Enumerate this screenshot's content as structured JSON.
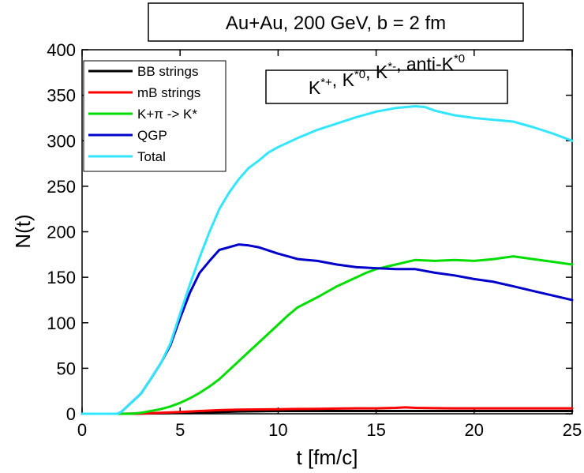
{
  "chart_data": {
    "type": "line",
    "title": "Au+Au, 200 GeV, b = 2 fm",
    "xlabel": "t [fm/c]",
    "ylabel": "N(t)",
    "xlim": [
      0,
      25
    ],
    "ylim": [
      0,
      400
    ],
    "xticks": [
      0,
      5,
      10,
      15,
      20,
      25
    ],
    "yticks": [
      0,
      50,
      100,
      150,
      200,
      250,
      300,
      350,
      400
    ],
    "legend_position": "top-left",
    "species_label": {
      "parts": [
        {
          "text": "K",
          "sup": "*+"
        },
        {
          "text": ", K",
          "sup": "*0"
        },
        {
          "text": ", K",
          "sup": "*-"
        },
        {
          "text": ", anti-K",
          "sup": "*0"
        }
      ]
    },
    "series": [
      {
        "name": "BB strings",
        "color": "#000000",
        "x": [
          0,
          2,
          3,
          4,
          5,
          6,
          7,
          8,
          10,
          12,
          15,
          17,
          20,
          25
        ],
        "y": [
          0,
          0,
          0.2,
          0.5,
          1,
          1.5,
          2,
          2.5,
          3,
          3,
          3,
          3,
          3,
          3
        ]
      },
      {
        "name": "mB strings",
        "color": "#ff0000",
        "x": [
          0,
          2,
          3,
          4,
          5,
          6,
          7,
          8,
          9,
          10,
          11,
          12,
          13,
          14,
          15,
          16,
          16.5,
          17,
          18,
          19,
          20,
          21,
          22,
          23,
          24,
          25
        ],
        "y": [
          0,
          0,
          0.3,
          1,
          2,
          3,
          4,
          4.5,
          4.8,
          5,
          5.3,
          5.5,
          5.7,
          6,
          6,
          6.5,
          7,
          6.5,
          6.2,
          6,
          6,
          6,
          6,
          6,
          6,
          6
        ]
      },
      {
        "name": "K+π -> K*",
        "legend_parts": [
          "K+",
          "π",
          " -> K*"
        ],
        "color": "#00dd00",
        "x": [
          0,
          2.5,
          3,
          4,
          4.5,
          5,
          5.5,
          6,
          6.5,
          7,
          7.5,
          8,
          8.5,
          9,
          9.5,
          10,
          10.5,
          11,
          12,
          13,
          14,
          14.5,
          15,
          16,
          17,
          18,
          19,
          20,
          21,
          22,
          23,
          24,
          25
        ],
        "y": [
          0,
          0,
          1,
          5,
          8,
          12,
          17,
          23,
          30,
          38,
          48,
          58,
          68,
          78,
          88,
          98,
          108,
          117,
          128,
          140,
          150,
          155,
          159,
          164,
          169,
          168,
          169,
          168,
          170,
          173,
          170,
          167,
          164
        ]
      },
      {
        "name": "QGP",
        "color": "#0000cc",
        "x": [
          0,
          1,
          1.8,
          2,
          2.5,
          3,
          3.5,
          4,
          4.5,
          5,
          5.5,
          6,
          6.5,
          7,
          7.5,
          8,
          8.5,
          9,
          10,
          11,
          12,
          13,
          14,
          15,
          16,
          17,
          18,
          19,
          20,
          21,
          22,
          23,
          24,
          25
        ],
        "y": [
          0,
          0,
          0,
          2,
          12,
          22,
          38,
          55,
          75,
          105,
          133,
          155,
          168,
          180,
          183,
          186,
          185,
          183,
          176,
          170,
          168,
          164,
          161,
          160,
          159,
          159,
          155,
          152,
          148,
          145,
          140,
          135,
          130,
          125
        ]
      },
      {
        "name": "Total",
        "color": "#33e6ff",
        "x": [
          0,
          1,
          1.8,
          2,
          2.5,
          3,
          3.5,
          4,
          4.5,
          5,
          5.5,
          6,
          6.5,
          7,
          7.5,
          8,
          8.5,
          9,
          9.5,
          10,
          11,
          12,
          13,
          14,
          15,
          16,
          17,
          17.5,
          18,
          19,
          20,
          21,
          22,
          23,
          24,
          25
        ],
        "y": [
          0,
          0,
          0,
          2,
          12,
          22,
          38,
          55,
          77,
          110,
          142,
          172,
          200,
          225,
          243,
          258,
          270,
          278,
          287,
          293,
          303,
          312,
          319,
          326,
          332,
          336,
          338,
          337,
          333,
          328,
          325,
          323,
          321,
          315,
          308,
          300
        ]
      }
    ]
  }
}
